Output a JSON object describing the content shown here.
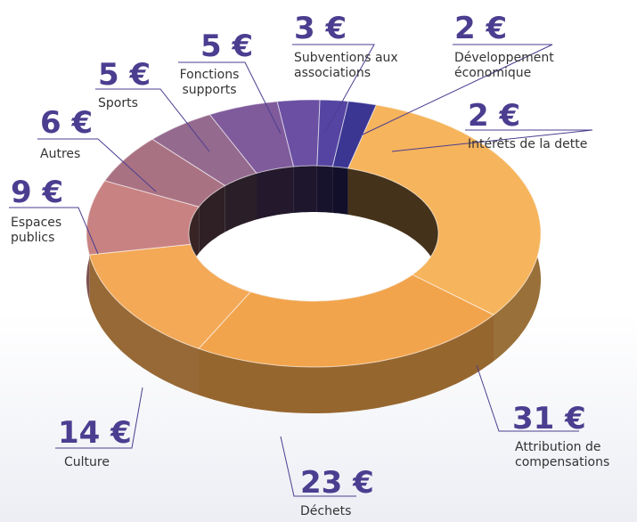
{
  "chart_data": {
    "type": "donut3d",
    "categories": [
      "Attribution de compensations",
      "Déchets",
      "Culture",
      "Espaces publics",
      "Autres",
      "Sports",
      "Fonctions supports",
      "Subventions aux associations",
      "Développement économique",
      "Intérêts de la dette"
    ],
    "values": [
      31,
      23,
      14,
      9,
      6,
      5,
      5,
      3,
      2,
      2
    ],
    "value_labels": [
      "31 €",
      "23 €",
      "14 €",
      "9 €",
      "6 €",
      "5 €",
      "5 €",
      "3 €",
      "2 €",
      "2 €"
    ],
    "colors": [
      "#f6b45c",
      "#f2a44c",
      "#f4a957",
      "#c98282",
      "#a97283",
      "#956a8f",
      "#7f5b9c",
      "#6a4fa2",
      "#5544a2",
      "#3b3692"
    ]
  }
}
